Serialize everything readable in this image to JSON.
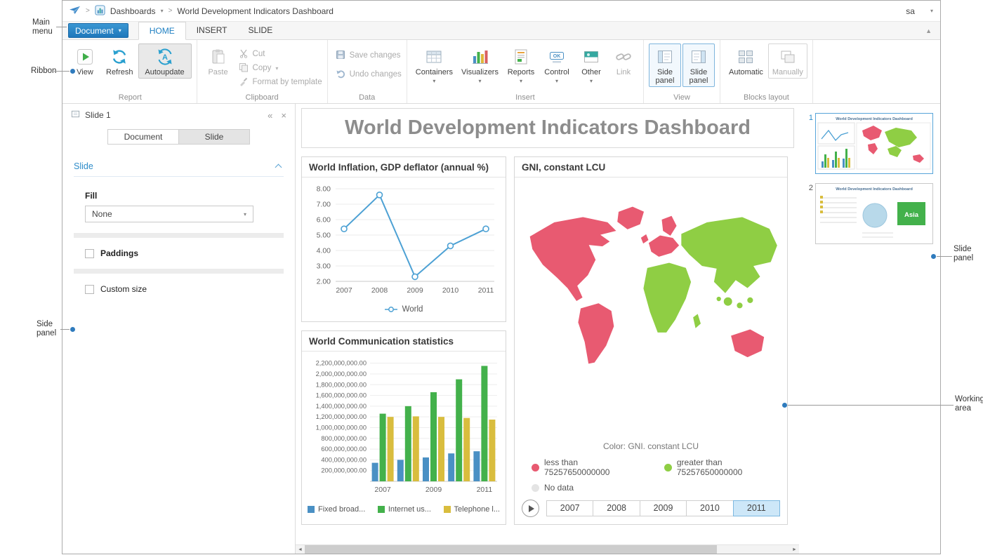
{
  "colors": {
    "accent": "#1e7fc2",
    "map_red": "#e85a71",
    "map_green": "#8fce44"
  },
  "annotations": {
    "main_menu": "Main menu",
    "ribbon": "Ribbon",
    "side_panel": "Side panel",
    "slide_panel": "Slide panel",
    "working_area": "Working area"
  },
  "topbar": {
    "dashboards": "Dashboards",
    "title": "World Development Indicators Dashboard",
    "user": "sa"
  },
  "menubar": {
    "document": "Document",
    "tabs": [
      {
        "label": "HOME",
        "active": true
      },
      {
        "label": "INSERT",
        "active": false
      },
      {
        "label": "SLIDE",
        "active": false
      }
    ]
  },
  "ribbon": {
    "view": "View",
    "refresh": "Refresh",
    "autoupdate": "Autoupdate",
    "paste": "Paste",
    "cut": "Cut",
    "copy": "Copy",
    "format_by_template": "Format by template",
    "save_changes": "Save changes",
    "undo_changes": "Undo changes",
    "containers": "Containers",
    "visualizers": "Visualizers",
    "reports": "Reports",
    "control": "Control",
    "other": "Other",
    "link": "Link",
    "side_panel": "Side panel",
    "slide_panel": "Slide panel",
    "automatic": "Automatic",
    "manually": "Manually",
    "groups": {
      "report": "Report",
      "clipboard": "Clipboard",
      "data": "Data",
      "insert": "Insert",
      "view": "View",
      "blocks": "Blocks layout"
    }
  },
  "sidebar": {
    "header": "Slide 1",
    "tab_document": "Document",
    "tab_slide": "Slide",
    "section": "Slide",
    "fill_label": "Fill",
    "fill_value": "None",
    "paddings": "Paddings",
    "custom_size": "Custom size"
  },
  "working": {
    "title": "World Development Indicators Dashboard"
  },
  "chart_data": [
    {
      "type": "line",
      "title": "World Inflation, GDP deflator (annual %)",
      "x": [
        2007,
        2008,
        2009,
        2010,
        2011
      ],
      "series": [
        {
          "name": "World",
          "color": "#4da1d4",
          "values": [
            5.4,
            7.6,
            2.3,
            4.3,
            5.4
          ]
        }
      ],
      "ylim": [
        2,
        8
      ],
      "ytick_step": 1,
      "grid": true,
      "legend_position": "bottom"
    },
    {
      "type": "bar",
      "title": "World Communication statistics",
      "categories": [
        2007,
        2008,
        2009,
        2010,
        2011
      ],
      "x_tick_labels": [
        "2007",
        "2009",
        "2011"
      ],
      "series": [
        {
          "name": "Fixed broad...",
          "color": "#4a90c4",
          "values": [
            345000000,
            400000000,
            445000000,
            520000000,
            560000000
          ]
        },
        {
          "name": "Internet us...",
          "color": "#43b14b",
          "values": [
            1260000000,
            1400000000,
            1660000000,
            1900000000,
            2150000000
          ]
        },
        {
          "name": "Telephone l...",
          "color": "#d9bd3e",
          "values": [
            1200000000,
            1210000000,
            1200000000,
            1180000000,
            1150000000
          ]
        }
      ],
      "ylim": [
        0,
        2300000000
      ],
      "ytick_min": 200000000,
      "ytick_max": 2200000000,
      "ytick_step": 200000000,
      "legend_position": "bottom"
    },
    {
      "type": "map",
      "title": "GNI, constant LCU",
      "caption": "Color: GNI. constant LCU",
      "legend": [
        {
          "label": "less than 75257650000000",
          "color": "#e85a71"
        },
        {
          "label": "greater than 75257650000000",
          "color": "#8fce44"
        },
        {
          "label": "No data",
          "color": "#e4e4e4"
        }
      ],
      "years": [
        "2007",
        "2008",
        "2009",
        "2010",
        "2011"
      ],
      "selected_year": "2011"
    }
  ],
  "slidepanel": {
    "slides": [
      {
        "num": "1",
        "selected": true
      },
      {
        "num": "2",
        "selected": false
      }
    ],
    "thumb_title": "World Development Indicators Dashboard",
    "asia_label": "Asia"
  },
  "scrollbar": {
    "left_arrow": "◄",
    "right_arrow": "►"
  }
}
